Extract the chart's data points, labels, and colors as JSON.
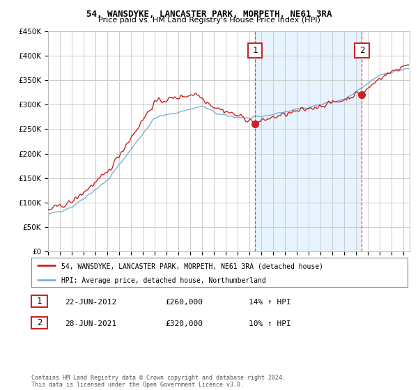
{
  "title": "54, WANSDYKE, LANCASTER PARK, MORPETH, NE61 3RA",
  "subtitle": "Price paid vs. HM Land Registry's House Price Index (HPI)",
  "legend_line1": "54, WANSDYKE, LANCASTER PARK, MORPETH, NE61 3RA (detached house)",
  "legend_line2": "HPI: Average price, detached house, Northumberland",
  "sale1_label": "1",
  "sale1_date": "22-JUN-2012",
  "sale1_price": "£260,000",
  "sale1_hpi": "14% ↑ HPI",
  "sale1_year": 2012.47,
  "sale1_value": 260000,
  "sale2_label": "2",
  "sale2_date": "28-JUN-2021",
  "sale2_price": "£320,000",
  "sale2_hpi": "10% ↑ HPI",
  "sale2_year": 2021.47,
  "sale2_value": 320000,
  "ylim_min": 0,
  "ylim_max": 450000,
  "yticks": [
    0,
    50000,
    100000,
    150000,
    200000,
    250000,
    300000,
    350000,
    400000,
    450000
  ],
  "ytick_labels": [
    "£0",
    "£50K",
    "£100K",
    "£150K",
    "£200K",
    "£250K",
    "£300K",
    "£350K",
    "£400K",
    "£450K"
  ],
  "hpi_color": "#7ab0d4",
  "price_color": "#cc2222",
  "vline_color": "#cc2222",
  "shade_color": "#ddeeff",
  "background_color": "#ffffff",
  "grid_color": "#cccccc",
  "footnote": "Contains HM Land Registry data © Crown copyright and database right 2024.\nThis data is licensed under the Open Government Licence v3.0.",
  "xlim_min": 1995,
  "xlim_max": 2025.5
}
